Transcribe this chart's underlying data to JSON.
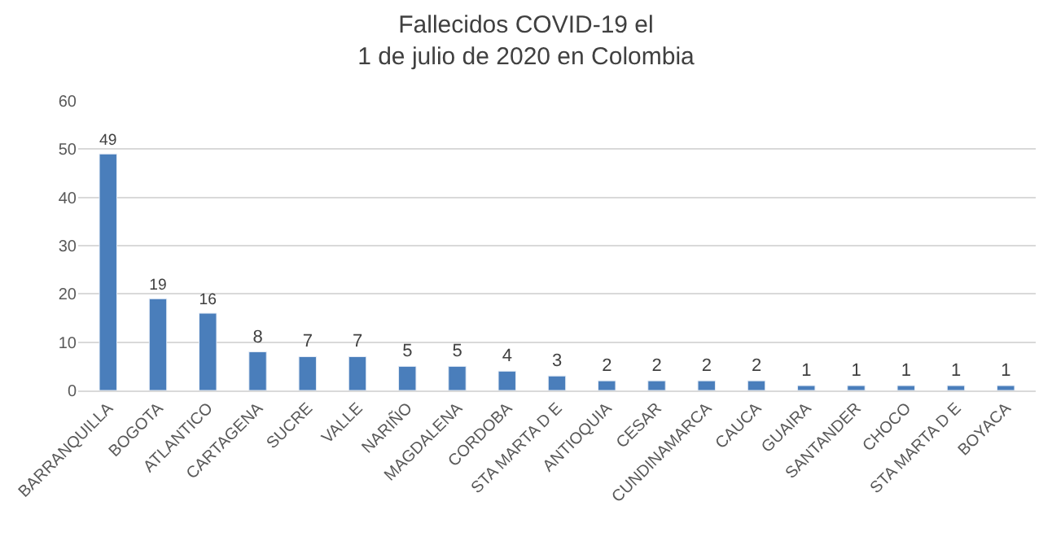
{
  "chart_data": {
    "type": "bar",
    "title": "Fallecidos COVID-19 el\n1 de julio de 2020 en Colombia",
    "categories": [
      "BARRANQUILLA",
      "BOGOTA",
      "ATLANTICO",
      "CARTAGENA",
      "SUCRE",
      "VALLE",
      "NARIÑO",
      "MAGDALENA",
      "CORDOBA",
      "STA MARTA D E",
      "ANTIOQUIA",
      "CESAR",
      "CUNDINAMARCA",
      "CAUCA",
      "GUAIRA",
      "SANTANDER",
      "CHOCO",
      "STA MARTA D E",
      "BOYACA"
    ],
    "values": [
      49,
      19,
      16,
      8,
      7,
      7,
      5,
      5,
      4,
      3,
      2,
      2,
      2,
      2,
      1,
      1,
      1,
      1,
      1
    ],
    "color": "#4a7ebb",
    "ylim": [
      0,
      60
    ],
    "yticks": [
      0,
      10,
      20,
      30,
      40,
      50,
      60
    ],
    "grid": "y",
    "data_labels": true,
    "legend": false
  }
}
